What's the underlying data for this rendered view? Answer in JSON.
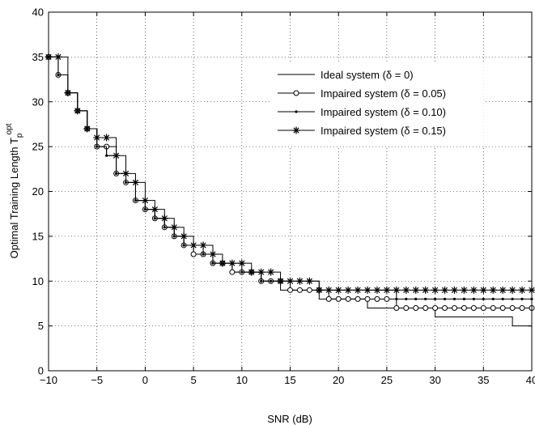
{
  "chart_data": {
    "type": "line",
    "xlabel": "SNR (dB)",
    "ylabel": "Optimal Training Length T",
    "ylabel_sub": "p",
    "ylabel_sup": "opt",
    "xlim": [
      -10,
      40
    ],
    "ylim": [
      0,
      40
    ],
    "xticks": [
      -10,
      -5,
      0,
      5,
      10,
      15,
      20,
      25,
      30,
      35,
      40
    ],
    "yticks": [
      0,
      5,
      10,
      15,
      20,
      25,
      30,
      35,
      40
    ],
    "xtick_labels": [
      "−10",
      "−5",
      "0",
      "5",
      "10",
      "15",
      "20",
      "25",
      "30",
      "35",
      "40"
    ],
    "ytick_labels": [
      "0",
      "5",
      "10",
      "15",
      "20",
      "25",
      "30",
      "35",
      "40"
    ],
    "grid": true,
    "legend_position": "top-right",
    "x": [
      -10,
      -9,
      -8,
      -7,
      -6,
      -5,
      -4,
      -3,
      -2,
      -1,
      0,
      1,
      2,
      3,
      4,
      5,
      6,
      7,
      8,
      9,
      10,
      11,
      12,
      13,
      14,
      15,
      16,
      17,
      18,
      19,
      20,
      21,
      22,
      23,
      24,
      25,
      26,
      27,
      28,
      29,
      30,
      31,
      32,
      33,
      34,
      35,
      36,
      37,
      38,
      39,
      40
    ],
    "series": [
      {
        "name": "Ideal system (δ = 0)",
        "marker": "none",
        "values": [
          35,
          33,
          31,
          29,
          27,
          25,
          24,
          22,
          21,
          19,
          18,
          17,
          16,
          15,
          14,
          13,
          13,
          12,
          12,
          11,
          11,
          11,
          10,
          10,
          9,
          9,
          9,
          9,
          8,
          8,
          8,
          8,
          8,
          7,
          7,
          7,
          7,
          7,
          7,
          7,
          6,
          6,
          6,
          6,
          6,
          6,
          6,
          6,
          5,
          5,
          5
        ]
      },
      {
        "name": "Impaired system (δ = 0.05)",
        "marker": "circle",
        "values": [
          35,
          33,
          31,
          29,
          27,
          25,
          25,
          22,
          21,
          19,
          18,
          17,
          16,
          15,
          14,
          13,
          13,
          12,
          12,
          11,
          11,
          11,
          10,
          10,
          10,
          9,
          9,
          9,
          9,
          8,
          8,
          8,
          8,
          8,
          8,
          8,
          7,
          7,
          7,
          7,
          7,
          7,
          7,
          7,
          7,
          7,
          7,
          7,
          7,
          7,
          7
        ]
      },
      {
        "name": "Impaired system (δ = 0.10)",
        "marker": "dot",
        "values": [
          35,
          33,
          31,
          29,
          27,
          25,
          24,
          22,
          21,
          19,
          18,
          17,
          16,
          15,
          14,
          14,
          13,
          12,
          12,
          12,
          11,
          11,
          10,
          10,
          10,
          10,
          10,
          10,
          9,
          9,
          9,
          9,
          9,
          9,
          9,
          9,
          8,
          8,
          8,
          8,
          8,
          8,
          8,
          8,
          8,
          8,
          8,
          8,
          8,
          8,
          8
        ]
      },
      {
        "name": "Impaired system (δ = 0.15)",
        "marker": "star",
        "values": [
          35,
          35,
          31,
          29,
          27,
          26,
          26,
          24,
          22,
          21,
          19,
          18,
          17,
          16,
          15,
          14,
          14,
          13,
          12,
          12,
          12,
          11,
          11,
          11,
          10,
          10,
          10,
          10,
          9,
          9,
          9,
          9,
          9,
          9,
          9,
          9,
          9,
          9,
          9,
          9,
          9,
          9,
          9,
          9,
          9,
          9,
          9,
          9,
          9,
          9,
          9
        ]
      }
    ]
  }
}
